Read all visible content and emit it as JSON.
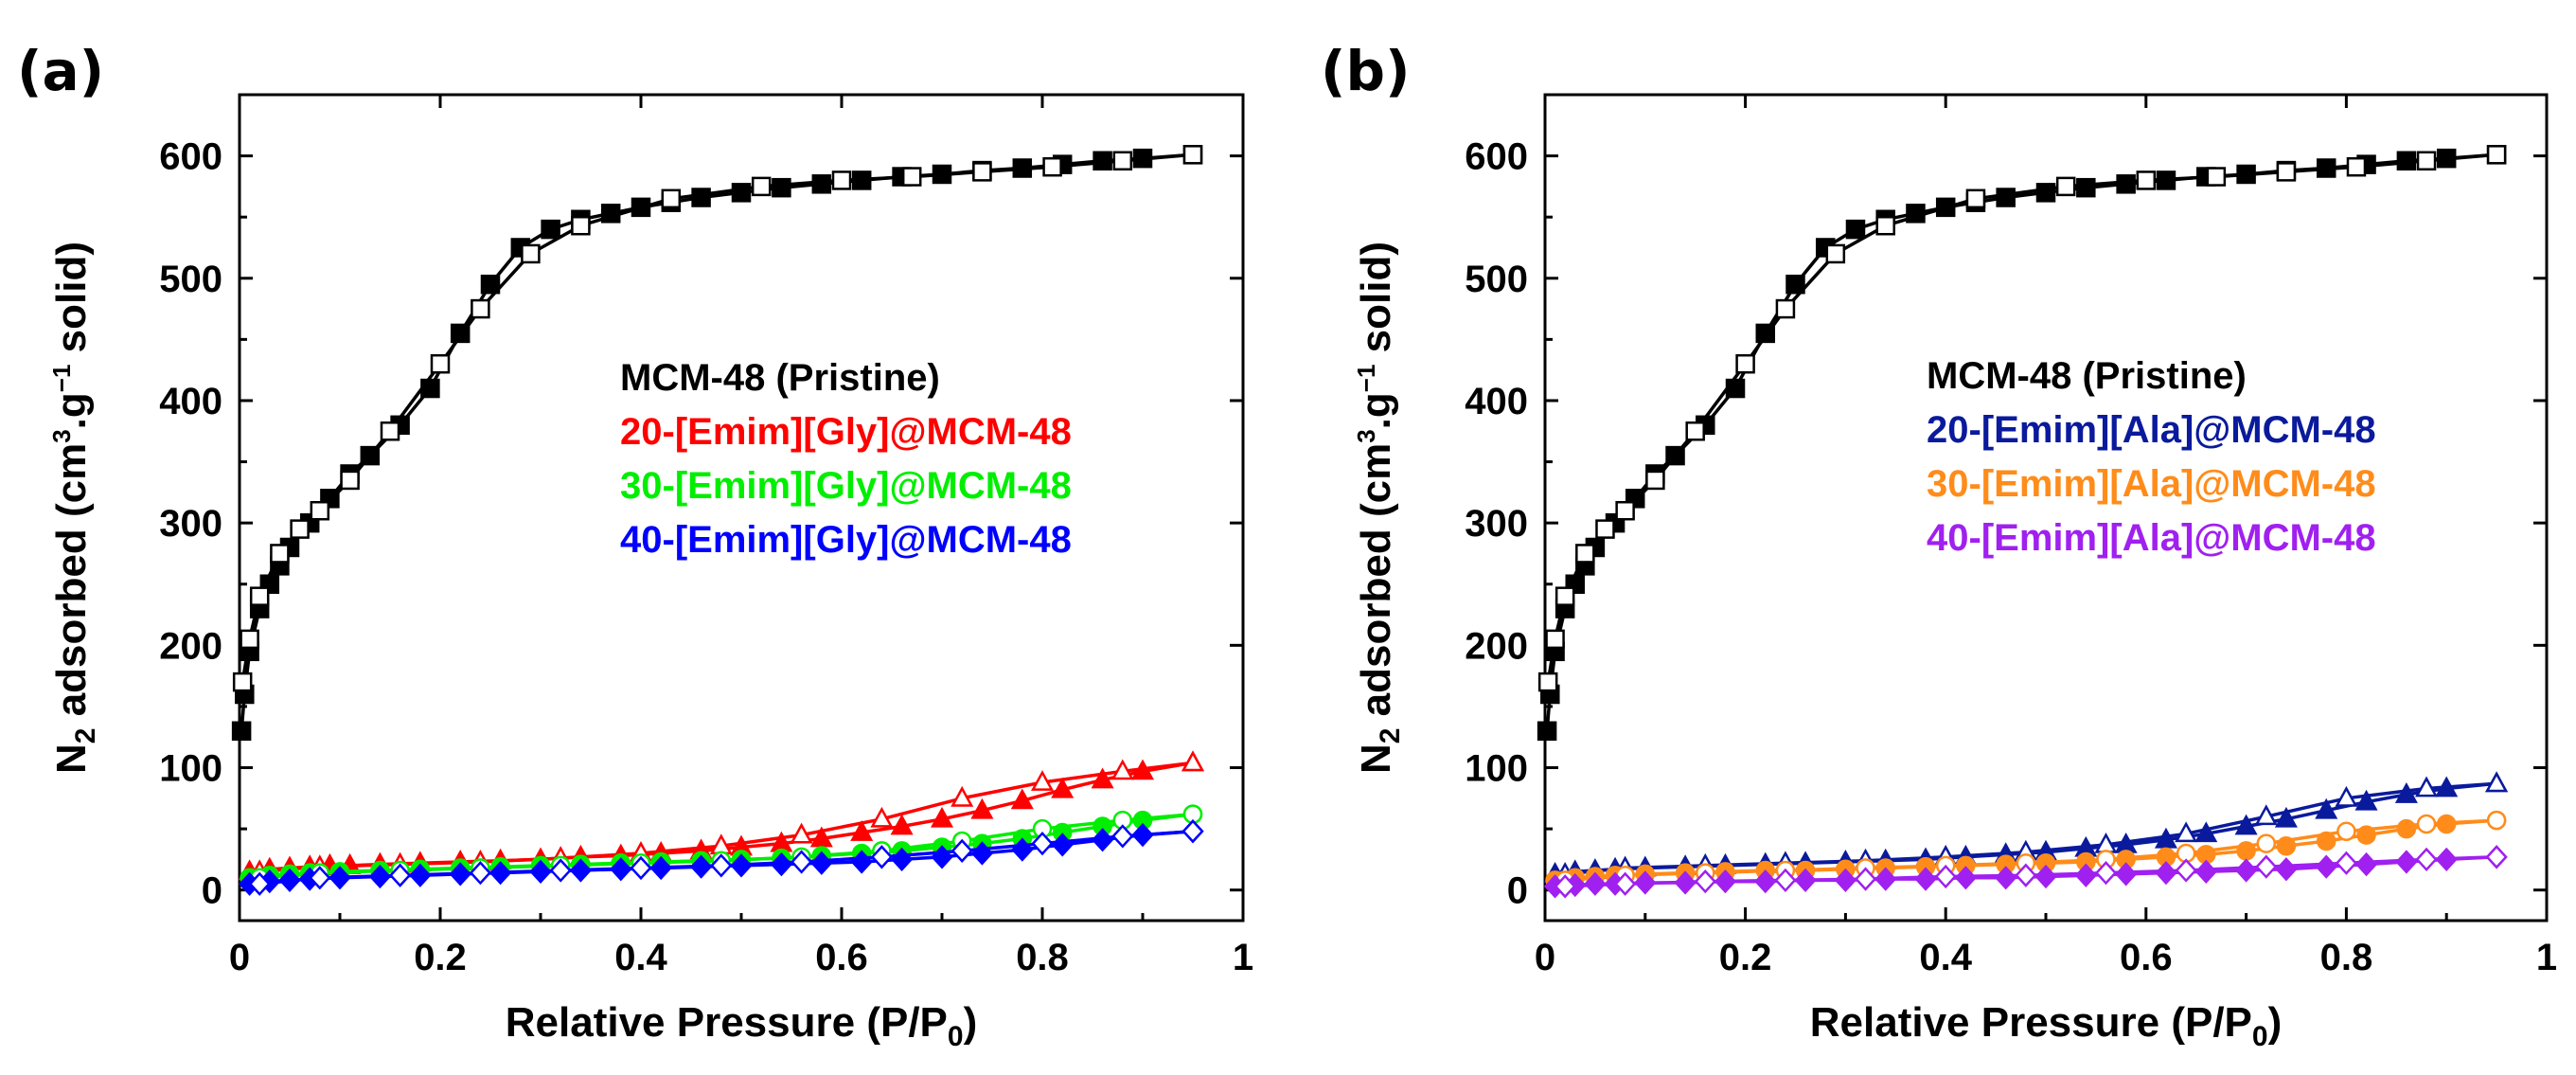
{
  "chart_data": [
    {
      "type": "line",
      "panel_label": "(a)",
      "xlabel_main": "Relative Pressure (P/P",
      "xlabel_sub": "0",
      "xlabel_tail": ")",
      "ylabel_parts": [
        "N",
        "2",
        " adsorbed (cm",
        "3",
        ".g",
        "−1",
        " solid)"
      ],
      "xlim": [
        0,
        1
      ],
      "ylim": [
        -25,
        650
      ],
      "x_ticks": [
        0,
        0.2,
        0.4,
        0.6,
        0.8,
        1
      ],
      "x_tick_labels": [
        "0",
        "0.2",
        "0.4",
        "0.6",
        "0.8",
        "1"
      ],
      "y_ticks": [
        0,
        100,
        200,
        300,
        400,
        500,
        600
      ],
      "y_tick_labels": [
        "0",
        "100",
        "200",
        "300",
        "400",
        "500",
        "600"
      ],
      "legend": [
        "MCM-48 (Pristine)",
        "20-[Emim][Gly]@MCM-48",
        "30-[Emim][Gly]@MCM-48",
        "40-[Emim][Gly]@MCM-48"
      ],
      "series": [
        {
          "name": "MCM-48 (Pristine)",
          "color": "#000000",
          "marker": "square",
          "adsorption": {
            "x": [
              0.002,
              0.005,
              0.01,
              0.02,
              0.03,
              0.04,
              0.05,
              0.07,
              0.09,
              0.11,
              0.13,
              0.16,
              0.19,
              0.22,
              0.25,
              0.28,
              0.31,
              0.34,
              0.37,
              0.4,
              0.43,
              0.46,
              0.5,
              0.54,
              0.58,
              0.62,
              0.66,
              0.7,
              0.74,
              0.78,
              0.82,
              0.86,
              0.9,
              0.95
            ],
            "y": [
              130,
              160,
              195,
              230,
              250,
              265,
              280,
              300,
              320,
              340,
              355,
              380,
              410,
              455,
              495,
              525,
              540,
              548,
              553,
              558,
              562,
              566,
              570,
              574,
              577,
              580,
              583,
              585,
              588,
              590,
              593,
              596,
              598,
              601
            ]
          },
          "desorption": {
            "x": [
              0.95,
              0.88,
              0.81,
              0.74,
              0.67,
              0.6,
              0.52,
              0.43,
              0.34,
              0.29,
              0.24,
              0.2,
              0.15,
              0.11,
              0.08,
              0.06,
              0.04,
              0.02,
              0.01,
              0.003
            ],
            "y": [
              601,
              596,
              591,
              587,
              583,
              580,
              575,
              565,
              543,
              520,
              475,
              430,
              375,
              335,
              310,
              295,
              275,
              240,
              205,
              170
            ]
          }
        },
        {
          "name": "20-[Emim][Gly]@MCM-48",
          "color": "#ff0000",
          "marker": "triangle",
          "adsorption": {
            "x": [
              0.01,
              0.03,
              0.05,
              0.07,
              0.09,
              0.11,
              0.14,
              0.18,
              0.22,
              0.26,
              0.3,
              0.34,
              0.38,
              0.42,
              0.46,
              0.5,
              0.54,
              0.58,
              0.62,
              0.66,
              0.7,
              0.74,
              0.78,
              0.82,
              0.86,
              0.9,
              0.95
            ],
            "y": [
              15,
              17,
              18,
              19,
              20,
              20,
              21,
              22,
              23,
              24,
              25,
              27,
              28,
              30,
              32,
              35,
              38,
              42,
              47,
              52,
              58,
              65,
              73,
              82,
              90,
              97,
              104
            ]
          },
          "desorption": {
            "x": [
              0.95,
              0.88,
              0.8,
              0.72,
              0.64,
              0.56,
              0.48,
              0.4,
              0.32,
              0.24,
              0.16,
              0.08,
              0.02
            ],
            "y": [
              104,
              97,
              88,
              75,
              58,
              45,
              36,
              30,
              26,
              23,
              21,
              19,
              15
            ]
          }
        },
        {
          "name": "30-[Emim][Gly]@MCM-48",
          "color": "#00ee00",
          "marker": "circle",
          "adsorption": {
            "x": [
              0.01,
              0.03,
              0.05,
              0.07,
              0.1,
              0.14,
              0.18,
              0.22,
              0.26,
              0.3,
              0.34,
              0.38,
              0.42,
              0.46,
              0.5,
              0.54,
              0.58,
              0.62,
              0.66,
              0.7,
              0.74,
              0.78,
              0.82,
              0.86,
              0.9,
              0.95
            ],
            "y": [
              10,
              12,
              13,
              14,
              15,
              16,
              17,
              18,
              19,
              20,
              21,
              22,
              23,
              24,
              25,
              26,
              28,
              30,
              32,
              35,
              38,
              42,
              47,
              52,
              57,
              62
            ]
          },
          "desorption": {
            "x": [
              0.95,
              0.88,
              0.8,
              0.72,
              0.64,
              0.56,
              0.48,
              0.4,
              0.32,
              0.24,
              0.16,
              0.08,
              0.02
            ],
            "y": [
              62,
              57,
              50,
              40,
              32,
              27,
              24,
              22,
              20,
              18,
              16,
              14,
              10
            ]
          }
        },
        {
          "name": "40-[Emim][Gly]@MCM-48",
          "color": "#0000ff",
          "marker": "diamond",
          "adsorption": {
            "x": [
              0.01,
              0.03,
              0.05,
              0.07,
              0.1,
              0.14,
              0.18,
              0.22,
              0.26,
              0.3,
              0.34,
              0.38,
              0.42,
              0.46,
              0.5,
              0.54,
              0.58,
              0.62,
              0.66,
              0.7,
              0.74,
              0.78,
              0.82,
              0.86,
              0.9,
              0.95
            ],
            "y": [
              5,
              7,
              8,
              9,
              10,
              11,
              12,
              13,
              14,
              15,
              16,
              17,
              18,
              19,
              20,
              21,
              22,
              23,
              25,
              27,
              30,
              33,
              37,
              41,
              45,
              48
            ]
          },
          "desorption": {
            "x": [
              0.95,
              0.88,
              0.8,
              0.72,
              0.64,
              0.56,
              0.48,
              0.4,
              0.32,
              0.24,
              0.16,
              0.08,
              0.02
            ],
            "y": [
              48,
              44,
              38,
              32,
              27,
              23,
              20,
              18,
              16,
              14,
              12,
              10,
              5
            ]
          }
        }
      ]
    },
    {
      "type": "line",
      "panel_label": "(b)",
      "xlabel_main": "Relative Pressure (P/P",
      "xlabel_sub": "0",
      "xlabel_tail": ")",
      "ylabel_parts": [
        "N",
        "2",
        " adsorbed (cm",
        "3",
        ".g",
        "−1",
        " solid)"
      ],
      "xlim": [
        0,
        1
      ],
      "ylim": [
        -25,
        650
      ],
      "x_ticks": [
        0,
        0.2,
        0.4,
        0.6,
        0.8,
        1
      ],
      "x_tick_labels": [
        "0",
        "0.2",
        "0.4",
        "0.6",
        "0.8",
        "1"
      ],
      "y_ticks": [
        0,
        100,
        200,
        300,
        400,
        500,
        600
      ],
      "y_tick_labels": [
        "0",
        "100",
        "200",
        "300",
        "400",
        "500",
        "600"
      ],
      "legend": [
        "MCM-48 (Pristine)",
        "20-[Emim][Ala]@MCM-48",
        "30-[Emim][Ala]@MCM-48",
        "40-[Emim][Ala]@MCM-48"
      ],
      "series": [
        {
          "name": "MCM-48 (Pristine)",
          "color": "#000000",
          "marker": "square",
          "adsorption": {
            "x": [
              0.002,
              0.005,
              0.01,
              0.02,
              0.03,
              0.04,
              0.05,
              0.07,
              0.09,
              0.11,
              0.13,
              0.16,
              0.19,
              0.22,
              0.25,
              0.28,
              0.31,
              0.34,
              0.37,
              0.4,
              0.43,
              0.46,
              0.5,
              0.54,
              0.58,
              0.62,
              0.66,
              0.7,
              0.74,
              0.78,
              0.82,
              0.86,
              0.9,
              0.95
            ],
            "y": [
              130,
              160,
              195,
              230,
              250,
              265,
              280,
              300,
              320,
              340,
              355,
              380,
              410,
              455,
              495,
              525,
              540,
              548,
              553,
              558,
              562,
              566,
              570,
              574,
              577,
              580,
              583,
              585,
              588,
              590,
              593,
              596,
              598,
              601
            ]
          },
          "desorption": {
            "x": [
              0.95,
              0.88,
              0.81,
              0.74,
              0.67,
              0.6,
              0.52,
              0.43,
              0.34,
              0.29,
              0.24,
              0.2,
              0.15,
              0.11,
              0.08,
              0.06,
              0.04,
              0.02,
              0.01,
              0.003
            ],
            "y": [
              601,
              596,
              591,
              587,
              583,
              580,
              575,
              565,
              543,
              520,
              475,
              430,
              375,
              335,
              310,
              295,
              275,
              240,
              205,
              170
            ]
          }
        },
        {
          "name": "20-[Emim][Ala]@MCM-48",
          "color": "#0a1a9c",
          "marker": "triangle",
          "adsorption": {
            "x": [
              0.01,
              0.03,
              0.05,
              0.07,
              0.1,
              0.14,
              0.18,
              0.22,
              0.26,
              0.3,
              0.34,
              0.38,
              0.42,
              0.46,
              0.5,
              0.54,
              0.58,
              0.62,
              0.66,
              0.7,
              0.74,
              0.78,
              0.82,
              0.86,
              0.9,
              0.95
            ],
            "y": [
              13,
              15,
              16,
              17,
              18,
              19,
              20,
              21,
              22,
              23,
              24,
              25,
              27,
              29,
              31,
              34,
              37,
              41,
              46,
              52,
              58,
              65,
              72,
              78,
              83,
              87
            ]
          },
          "desorption": {
            "x": [
              0.95,
              0.88,
              0.8,
              0.72,
              0.64,
              0.56,
              0.48,
              0.4,
              0.32,
              0.24,
              0.16,
              0.08,
              0.02
            ],
            "y": [
              87,
              83,
              75,
              60,
              46,
              37,
              31,
              27,
              24,
              22,
              20,
              18,
              13
            ]
          }
        },
        {
          "name": "30-[Emim][Ala]@MCM-48",
          "color": "#ff8c1a",
          "marker": "circle",
          "adsorption": {
            "x": [
              0.01,
              0.03,
              0.05,
              0.07,
              0.1,
              0.14,
              0.18,
              0.22,
              0.26,
              0.3,
              0.34,
              0.38,
              0.42,
              0.46,
              0.5,
              0.54,
              0.58,
              0.62,
              0.66,
              0.7,
              0.74,
              0.78,
              0.82,
              0.86,
              0.9,
              0.95
            ],
            "y": [
              8,
              10,
              11,
              12,
              13,
              14,
              15,
              16,
              16,
              17,
              18,
              19,
              20,
              21,
              22,
              23,
              25,
              27,
              29,
              32,
              36,
              40,
              45,
              50,
              54,
              57
            ]
          },
          "desorption": {
            "x": [
              0.95,
              0.88,
              0.8,
              0.72,
              0.64,
              0.56,
              0.48,
              0.4,
              0.32,
              0.24,
              0.16,
              0.08,
              0.02
            ],
            "y": [
              57,
              54,
              48,
              38,
              30,
              25,
              22,
              20,
              18,
              16,
              14,
              12,
              8
            ]
          }
        },
        {
          "name": "40-[Emim][Ala]@MCM-48",
          "color": "#a020f0",
          "marker": "diamond",
          "adsorption": {
            "x": [
              0.01,
              0.03,
              0.05,
              0.07,
              0.1,
              0.14,
              0.18,
              0.22,
              0.26,
              0.3,
              0.34,
              0.38,
              0.42,
              0.46,
              0.5,
              0.54,
              0.58,
              0.62,
              0.66,
              0.7,
              0.74,
              0.78,
              0.82,
              0.86,
              0.9,
              0.95
            ],
            "y": [
              3,
              4,
              5,
              5,
              6,
              6,
              7,
              7,
              8,
              8,
              9,
              9,
              10,
              10,
              11,
              12,
              13,
              14,
              15,
              16,
              17,
              19,
              21,
              23,
              25,
              27
            ]
          },
          "desorption": {
            "x": [
              0.95,
              0.88,
              0.8,
              0.72,
              0.64,
              0.56,
              0.48,
              0.4,
              0.32,
              0.24,
              0.16,
              0.08,
              0.02
            ],
            "y": [
              27,
              25,
              22,
              19,
              16,
              14,
              12,
              11,
              9,
              8,
              7,
              5,
              3
            ]
          }
        }
      ]
    }
  ]
}
